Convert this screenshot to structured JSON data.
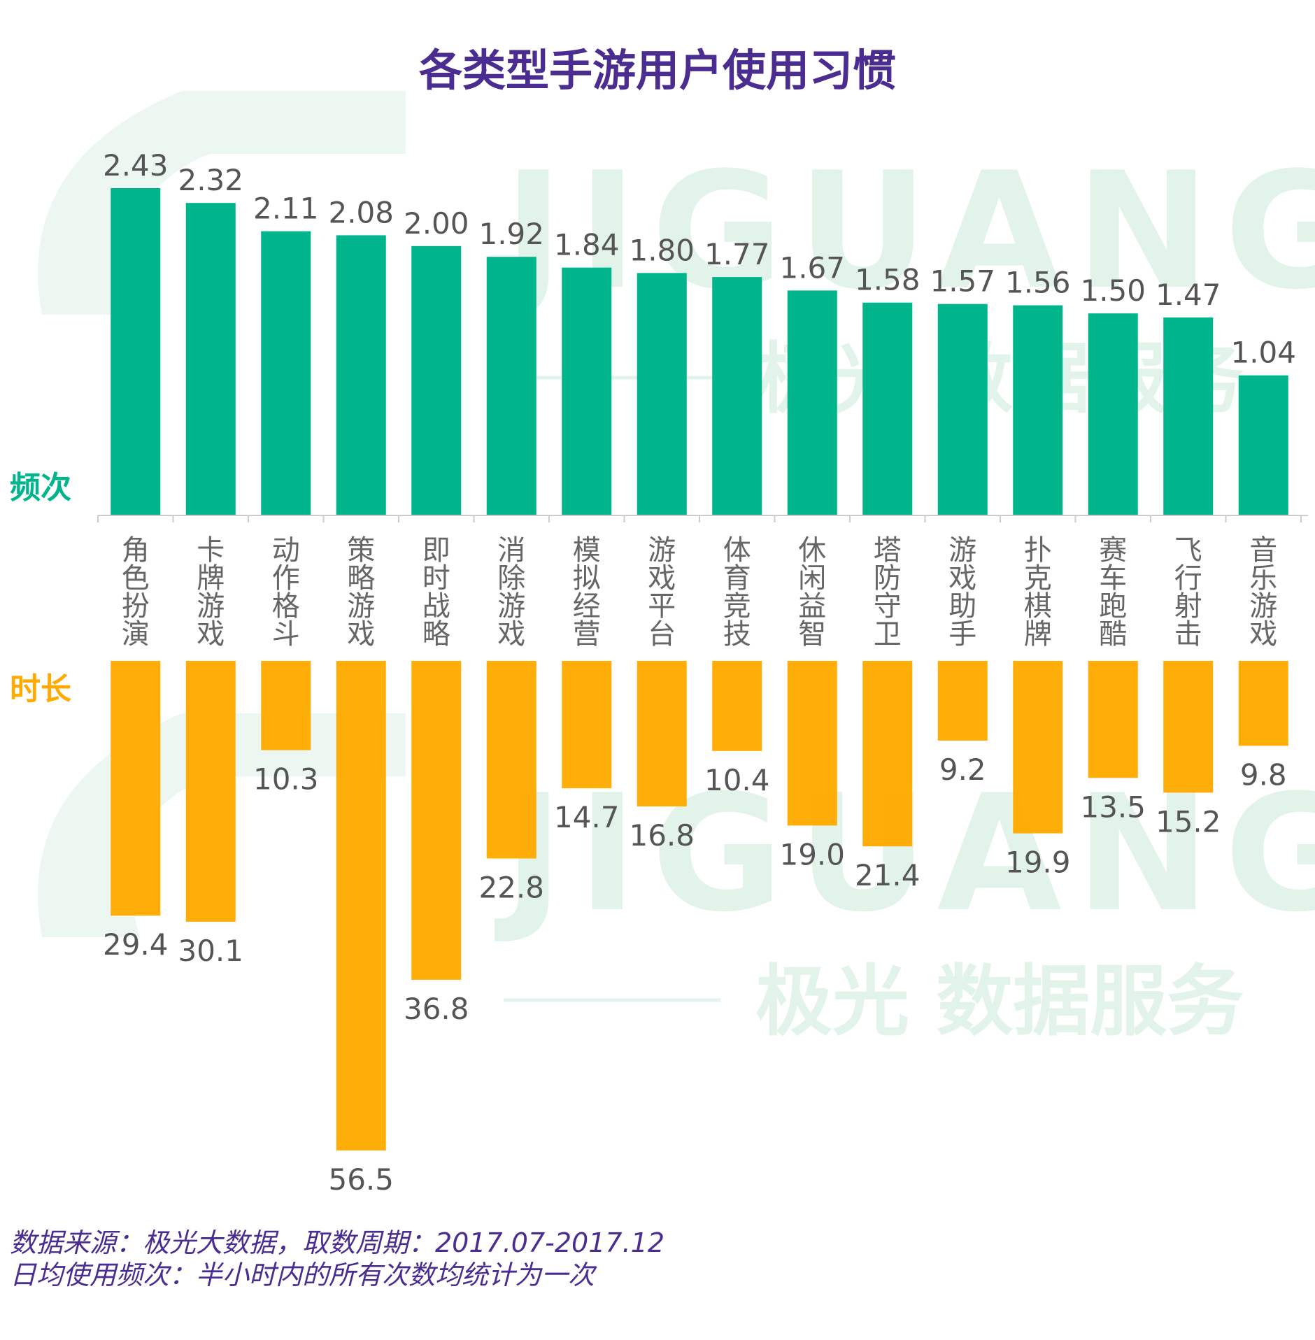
{
  "watermark": {
    "wordmark": "JIGUANG",
    "tagline": "极光 数据服务"
  },
  "notes": {
    "source": "数据来源：极光大数据，取数周期：2017.07-2017.12",
    "definition": "日均使用频次：半小时内的所有次数均统计为一次"
  },
  "colors": {
    "title": "#4b2d91",
    "frequency_bar": "#00b48c",
    "duration_bar": "#ffaa00",
    "value_label": "#555555",
    "category_label": "#666666",
    "axis": "#cccccc",
    "watermark": "#e2f4ea"
  },
  "chart_data": {
    "type": "bar",
    "title": "各类型手游用户使用习惯",
    "layout_note": "two mirrored bar charts sharing one category axis; frequency bars grow up, duration bars grow down",
    "categories": [
      "角色扮演",
      "卡牌游戏",
      "动作格斗",
      "策略游戏",
      "即时战略",
      "消除游戏",
      "模拟经营",
      "游戏平台",
      "体育竞技",
      "休闲益智",
      "塔防守卫",
      "游戏助手",
      "扑克棋牌",
      "赛车跑酷",
      "飞行射击",
      "音乐游戏"
    ],
    "category_orientation": "vertical",
    "series": [
      {
        "name": "频次",
        "direction": "up",
        "values": [
          2.43,
          2.32,
          2.11,
          2.08,
          2.0,
          1.92,
          1.84,
          1.8,
          1.77,
          1.67,
          1.58,
          1.57,
          1.56,
          1.5,
          1.47,
          1.04
        ],
        "labels": [
          "2.43",
          "2.32",
          "2.11",
          "2.08",
          "2.00",
          "1.92",
          "1.84",
          "1.80",
          "1.77",
          "1.67",
          "1.58",
          "1.57",
          "1.56",
          "1.50",
          "1.47",
          "1.04"
        ]
      },
      {
        "name": "时长",
        "direction": "down",
        "values": [
          29.4,
          30.1,
          10.3,
          56.5,
          36.8,
          22.8,
          14.7,
          16.8,
          10.4,
          19.0,
          21.4,
          9.2,
          19.9,
          13.5,
          15.2,
          9.8
        ],
        "labels": [
          "29.4",
          "30.1",
          "10.3",
          "56.5",
          "36.8",
          "22.8",
          "14.7",
          "16.8",
          "10.4",
          "19.0",
          "21.4",
          "9.2",
          "19.9",
          "13.5",
          "15.2",
          "9.8"
        ]
      }
    ],
    "grid": false,
    "legend": "left"
  }
}
